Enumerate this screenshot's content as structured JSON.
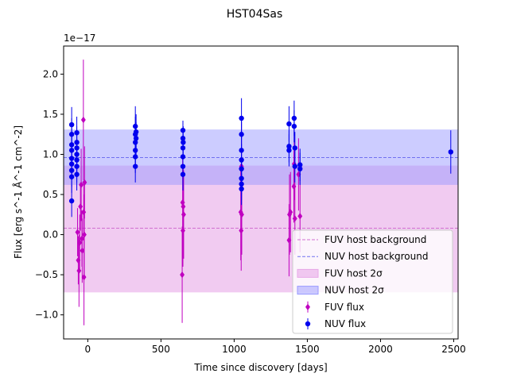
{
  "chart_data": {
    "type": "scatter",
    "title": "HST04Sas",
    "xlabel": "Time since discovery [days]",
    "ylabel": "Flux [erg s^-1 Å^-1 cm^-2]",
    "y_offset_label": "1e−17",
    "xlim": [
      -165,
      2530
    ],
    "ylim": [
      -1.3,
      2.35
    ],
    "x_ticks": [
      0,
      500,
      1000,
      1500,
      2000,
      2500
    ],
    "y_ticks": [
      -1.0,
      -0.5,
      0.0,
      0.5,
      1.0,
      1.5,
      2.0
    ],
    "x_tick_labels": [
      "0",
      "500",
      "1000",
      "1500",
      "2000",
      "2500"
    ],
    "y_tick_labels": [
      "−1.0",
      "−0.5",
      "0.0",
      "0.5",
      "1.0",
      "1.5",
      "2.0"
    ],
    "grid": false,
    "legend_position": "lower-right",
    "colors": {
      "fuv": "#c000c0",
      "nuv": "#0000ee",
      "fuv_band": "#e8a8e8",
      "nuv_band": "#9999ff",
      "fuv_line": "#d070d0",
      "nuv_line": "#7070f0"
    },
    "legend": {
      "fuv_bg": "FUV host background",
      "nuv_bg": "NUV host background",
      "fuv_band": "FUV host 2σ",
      "nuv_band": "NUV host 2σ",
      "fuv_flux": "FUV flux",
      "nuv_flux": "NUV flux"
    },
    "fuv_host": {
      "mean": 0.08,
      "lo": -0.72,
      "hi": 0.86
    },
    "nuv_host": {
      "mean": 0.96,
      "lo": 0.62,
      "hi": 1.31
    },
    "series": [
      {
        "name": "FUV flux",
        "marker": "diamond",
        "points": [
          {
            "x": -70,
            "y": 0.03,
            "err": 0.3
          },
          {
            "x": -65,
            "y": -0.32,
            "err": 0.3
          },
          {
            "x": -60,
            "y": -0.45,
            "err": 0.45
          },
          {
            "x": -55,
            "y": -0.1,
            "err": 0.35
          },
          {
            "x": -50,
            "y": 0.35,
            "err": 0.3
          },
          {
            "x": -45,
            "y": 0.62,
            "err": 0.45
          },
          {
            "x": -40,
            "y": -0.05,
            "err": 0.35
          },
          {
            "x": -38,
            "y": -0.2,
            "err": 0.4
          },
          {
            "x": -30,
            "y": 1.43,
            "err": 0.75
          },
          {
            "x": -28,
            "y": 0.28,
            "err": 0.35
          },
          {
            "x": -26,
            "y": -0.53,
            "err": 0.6
          },
          {
            "x": -24,
            "y": 0.0,
            "err": 0.5
          },
          {
            "x": -22,
            "y": 0.65,
            "err": 0.45
          },
          {
            "x": 645,
            "y": -0.5,
            "err": 0.6
          },
          {
            "x": 648,
            "y": 0.4,
            "err": 0.55
          },
          {
            "x": 650,
            "y": 0.05,
            "err": 0.45
          },
          {
            "x": 652,
            "y": 0.35,
            "err": 0.5
          },
          {
            "x": 655,
            "y": 0.25,
            "err": 0.55
          },
          {
            "x": 1045,
            "y": 0.28,
            "err": 0.6
          },
          {
            "x": 1048,
            "y": 0.05,
            "err": 0.5
          },
          {
            "x": 1050,
            "y": 0.85,
            "err": 0.55
          },
          {
            "x": 1052,
            "y": 0.25,
            "err": 0.5
          },
          {
            "x": 1375,
            "y": -0.07,
            "err": 0.45
          },
          {
            "x": 1378,
            "y": 0.25,
            "err": 0.5
          },
          {
            "x": 1385,
            "y": 0.28,
            "err": 0.5
          },
          {
            "x": 1408,
            "y": 0.6,
            "err": 0.45
          },
          {
            "x": 1410,
            "y": 0.88,
            "err": 0.45
          },
          {
            "x": 1415,
            "y": 0.2,
            "err": 0.45
          },
          {
            "x": 1440,
            "y": 0.75,
            "err": 0.45
          },
          {
            "x": 1450,
            "y": 0.23,
            "err": 0.45
          }
        ]
      },
      {
        "name": "NUV flux",
        "marker": "circle",
        "points": [
          {
            "x": -110,
            "y": 1.37,
            "err": 0.22
          },
          {
            "x": -110,
            "y": 1.25,
            "err": 0.2
          },
          {
            "x": -110,
            "y": 1.12,
            "err": 0.2
          },
          {
            "x": -110,
            "y": 1.05,
            "err": 0.2
          },
          {
            "x": -110,
            "y": 0.95,
            "err": 0.2
          },
          {
            "x": -110,
            "y": 0.88,
            "err": 0.2
          },
          {
            "x": -110,
            "y": 0.8,
            "err": 0.2
          },
          {
            "x": -110,
            "y": 0.72,
            "err": 0.2
          },
          {
            "x": -110,
            "y": 0.42,
            "err": 0.2
          },
          {
            "x": -75,
            "y": 1.27,
            "err": 0.2
          },
          {
            "x": -75,
            "y": 1.15,
            "err": 0.2
          },
          {
            "x": -75,
            "y": 1.08,
            "err": 0.2
          },
          {
            "x": -75,
            "y": 1.0,
            "err": 0.2
          },
          {
            "x": -75,
            "y": 0.93,
            "err": 0.2
          },
          {
            "x": -75,
            "y": 0.85,
            "err": 0.2
          },
          {
            "x": -75,
            "y": 0.75,
            "err": 0.2
          },
          {
            "x": 325,
            "y": 1.35,
            "err": 0.25
          },
          {
            "x": 325,
            "y": 1.25,
            "err": 0.22
          },
          {
            "x": 325,
            "y": 1.15,
            "err": 0.2
          },
          {
            "x": 325,
            "y": 1.05,
            "err": 0.2
          },
          {
            "x": 325,
            "y": 0.97,
            "err": 0.2
          },
          {
            "x": 325,
            "y": 0.85,
            "err": 0.2
          },
          {
            "x": 330,
            "y": 1.28,
            "err": 0.22
          },
          {
            "x": 330,
            "y": 1.2,
            "err": 0.2
          },
          {
            "x": 650,
            "y": 1.3,
            "err": 0.12
          },
          {
            "x": 650,
            "y": 1.2,
            "err": 0.2
          },
          {
            "x": 650,
            "y": 1.08,
            "err": 0.2
          },
          {
            "x": 650,
            "y": 0.97,
            "err": 0.2
          },
          {
            "x": 650,
            "y": 0.85,
            "err": 0.2
          },
          {
            "x": 650,
            "y": 0.75,
            "err": 0.2
          },
          {
            "x": 652,
            "y": 1.15,
            "err": 0.2
          },
          {
            "x": 1050,
            "y": 1.45,
            "err": 0.25
          },
          {
            "x": 1050,
            "y": 1.25,
            "err": 0.2
          },
          {
            "x": 1050,
            "y": 1.05,
            "err": 0.2
          },
          {
            "x": 1050,
            "y": 0.93,
            "err": 0.2
          },
          {
            "x": 1050,
            "y": 0.82,
            "err": 0.2
          },
          {
            "x": 1050,
            "y": 0.7,
            "err": 0.2
          },
          {
            "x": 1050,
            "y": 0.63,
            "err": 0.2
          },
          {
            "x": 1050,
            "y": 0.57,
            "err": 0.2
          },
          {
            "x": 1375,
            "y": 1.38,
            "err": 0.22
          },
          {
            "x": 1375,
            "y": 1.1,
            "err": 0.2
          },
          {
            "x": 1375,
            "y": 1.05,
            "err": 0.2
          },
          {
            "x": 1410,
            "y": 1.45,
            "err": 0.22
          },
          {
            "x": 1410,
            "y": 1.35,
            "err": 0.2
          },
          {
            "x": 1415,
            "y": 1.08,
            "err": 0.2
          },
          {
            "x": 1415,
            "y": 0.85,
            "err": 0.2
          },
          {
            "x": 1450,
            "y": 0.87,
            "err": 0.2
          },
          {
            "x": 1450,
            "y": 0.82,
            "err": 0.2
          },
          {
            "x": 2480,
            "y": 1.03,
            "err": 0.27
          }
        ]
      }
    ]
  }
}
